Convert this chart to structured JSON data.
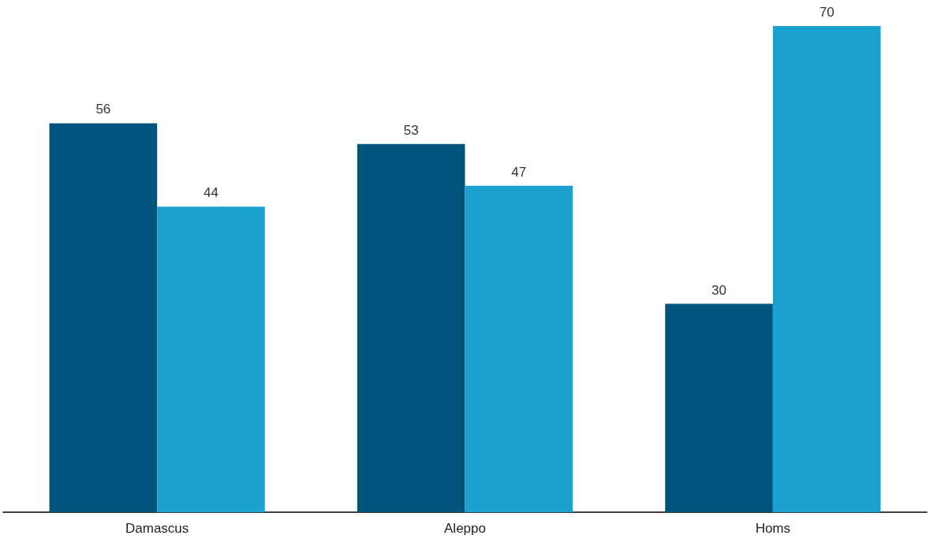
{
  "chart_data": {
    "type": "bar",
    "categories": [
      "Damascus",
      "Aleppo",
      "Homs"
    ],
    "series": [
      {
        "color": "#00537a",
        "values": [
          56,
          53,
          30
        ]
      },
      {
        "color": "#1aa1cf",
        "values": [
          44,
          47,
          70
        ]
      }
    ],
    "data_labels": true
  }
}
